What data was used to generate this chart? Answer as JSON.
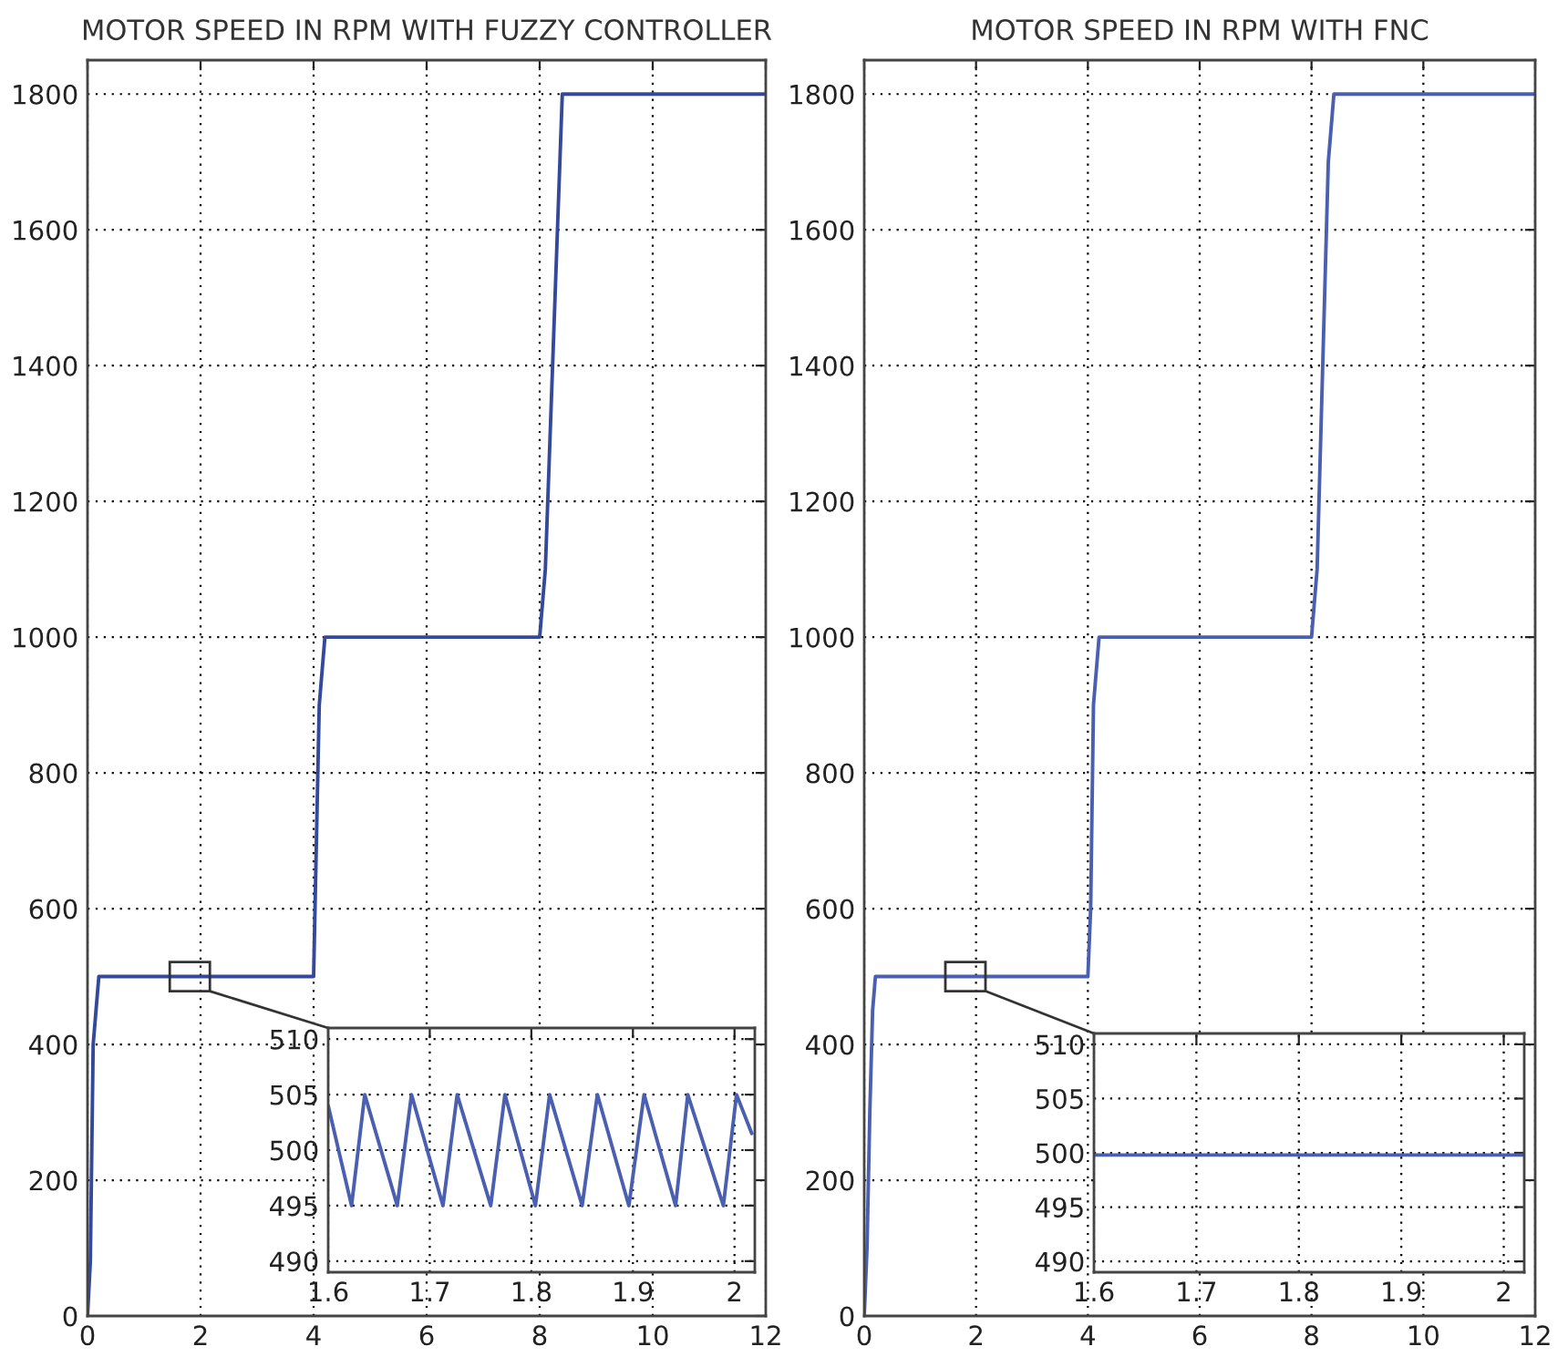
{
  "chart_data": [
    {
      "type": "line",
      "title": "MOTOR SPEED IN RPM WITH FUZZY CONTROLLER",
      "xlim": [
        0,
        12
      ],
      "ylim": [
        0,
        1850
      ],
      "xticks": [
        0,
        2,
        4,
        6,
        8,
        10,
        12
      ],
      "yticks": [
        0,
        200,
        400,
        600,
        800,
        1000,
        1200,
        1400,
        1600,
        1800
      ],
      "grid": true,
      "series": [
        {
          "color": "#34489c",
          "x": [
            0,
            0.05,
            0.1,
            0.2,
            4.0,
            4.1,
            4.2,
            8.0,
            8.1,
            8.4,
            12
          ],
          "values": [
            0,
            80,
            400,
            500,
            500,
            900,
            1000,
            1000,
            1100,
            1800,
            1800
          ]
        }
      ]
    },
    {
      "type": "line",
      "xlim": [
        1.6,
        2.02
      ],
      "ylim": [
        489,
        511
      ],
      "xticks": [
        1.6,
        1.7,
        1.8,
        1.9,
        2
      ],
      "yticks": [
        490,
        495,
        500,
        505,
        510
      ],
      "grid": true,
      "series": [
        {
          "color": "#4a5fb0",
          "x": [
            1.6,
            1.623,
            1.636,
            1.668,
            1.682,
            1.713,
            1.727,
            1.76,
            1.774,
            1.804,
            1.818,
            1.85,
            1.865,
            1.896,
            1.911,
            1.942,
            1.954,
            1.989,
            2.002,
            2.017
          ],
          "values": [
            504,
            495,
            505,
            495,
            505,
            495,
            505,
            495,
            505,
            495,
            505,
            495,
            505,
            495,
            505,
            495,
            505,
            495,
            505,
            501.5
          ]
        }
      ]
    },
    {
      "type": "line",
      "title": "MOTOR SPEED IN RPM WITH FNC",
      "xlim": [
        0,
        12
      ],
      "ylim": [
        0,
        1850
      ],
      "xticks": [
        0,
        2,
        4,
        6,
        8,
        10,
        12
      ],
      "yticks": [
        0,
        200,
        400,
        600,
        800,
        1000,
        1200,
        1400,
        1600,
        1800
      ],
      "grid": true,
      "series": [
        {
          "color": "#4a5fb0",
          "x": [
            0,
            0.05,
            0.1,
            0.15,
            0.2,
            4.0,
            4.05,
            4.1,
            4.2,
            8.0,
            8.1,
            8.3,
            8.4,
            12
          ],
          "values": [
            0,
            100,
            300,
            450,
            500,
            500,
            600,
            900,
            1000,
            1000,
            1100,
            1700,
            1800,
            1800
          ]
        }
      ]
    },
    {
      "type": "line",
      "xlim": [
        1.6,
        2.02
      ],
      "ylim": [
        489,
        511
      ],
      "xticks": [
        1.6,
        1.7,
        1.8,
        1.9,
        2
      ],
      "yticks": [
        490,
        495,
        500,
        505,
        510
      ],
      "grid": true,
      "series": [
        {
          "color": "#4a5fb0",
          "x": [
            1.6,
            1.7,
            1.8,
            1.9,
            2.0,
            2.02
          ],
          "values": [
            499.8,
            499.8,
            499.8,
            499.8,
            499.8,
            499.8
          ]
        }
      ]
    }
  ]
}
